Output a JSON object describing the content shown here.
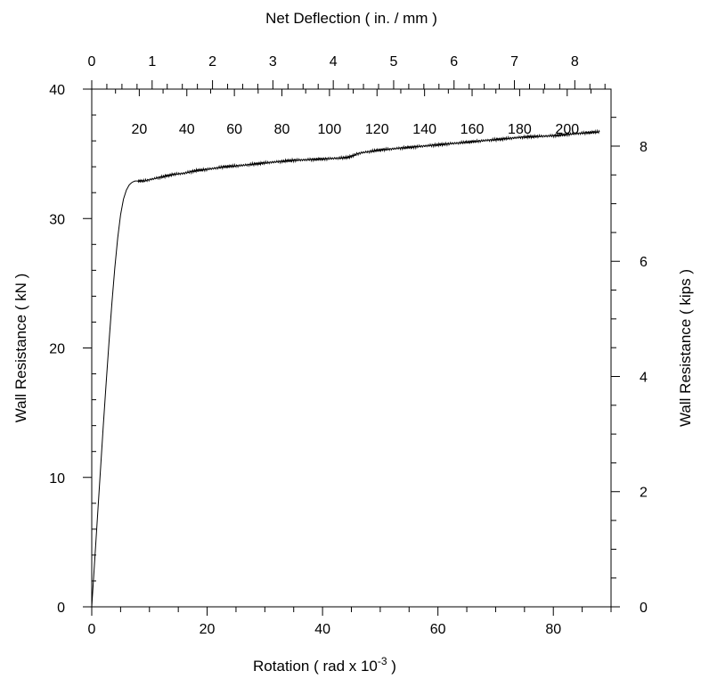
{
  "chart_data": {
    "type": "line",
    "title": "",
    "xlabel_main": "Rotation ( rad x 10",
    "xlabel_exp": "-3",
    "xlabel_tail": " )",
    "x2label": "Net Deflection ( in. / mm )",
    "ylabel": "Wall Resistance ( kN )",
    "y2label": "Wall Resistance ( kips )",
    "xlim": [
      0,
      90
    ],
    "ylim": [
      0,
      40
    ],
    "y2lim": [
      0,
      8.99
    ],
    "x2in_lim": [
      0,
      8.6
    ],
    "xticks": [
      "0",
      "20",
      "40",
      "60",
      "80"
    ],
    "yticks": [
      "0",
      "10",
      "20",
      "30",
      "40"
    ],
    "y2ticks": [
      "0",
      "2",
      "4",
      "6",
      "8"
    ],
    "x2in_ticks": [
      "0",
      "1",
      "2",
      "3",
      "4",
      "5",
      "6",
      "7",
      "8"
    ],
    "x2mm_ticks": [
      "20",
      "40",
      "60",
      "80",
      "100",
      "120",
      "140",
      "160",
      "180",
      "200"
    ],
    "grid": false,
    "series": [
      {
        "x": [
          0,
          0.5,
          1,
          1.5,
          2,
          2.5,
          3,
          3.5,
          4,
          4.5,
          5,
          5.5,
          6,
          6.5,
          7,
          7.5,
          8,
          9,
          10,
          11,
          12,
          14,
          16,
          18,
          20,
          23,
          26,
          30,
          35,
          40,
          44,
          45,
          46,
          47,
          50,
          55,
          60,
          65,
          70,
          75,
          80,
          85,
          88
        ],
        "y": [
          0,
          3.5,
          7,
          10.5,
          14,
          17.3,
          20.5,
          23.5,
          26.2,
          28.5,
          30.3,
          31.5,
          32.2,
          32.6,
          32.8,
          32.9,
          32.9,
          32.9,
          33.0,
          33.1,
          33.2,
          33.4,
          33.5,
          33.7,
          33.8,
          34.0,
          34.1,
          34.3,
          34.5,
          34.6,
          34.7,
          34.8,
          35.0,
          35.1,
          35.3,
          35.5,
          35.7,
          35.9,
          36.1,
          36.3,
          36.4,
          36.6,
          36.7
        ]
      }
    ]
  }
}
